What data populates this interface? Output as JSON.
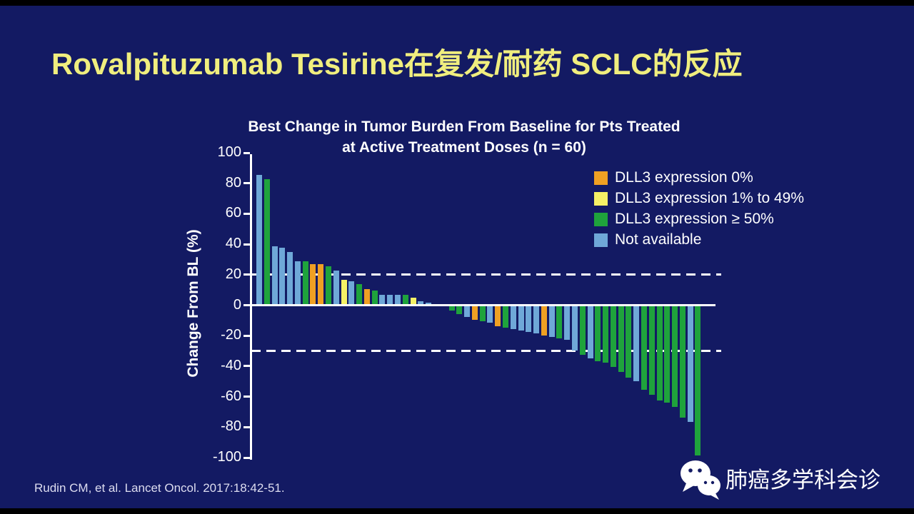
{
  "slide": {
    "title": "Rovalpituzumab Tesirine在复发/耐药 SCLC的反应",
    "citation": "Rudin CM, et al. Lancet Oncol. 2017:18:42-51.",
    "wechat_label": "肺癌多学科会诊"
  },
  "colors": {
    "background": "#131A63",
    "title_text": "#F0EE7E",
    "axis": "#FFFFFF",
    "dll3_0": "#EFA023",
    "dll3_1_49": "#F5F166",
    "dll3_ge50": "#1FA33C",
    "not_available": "#6FA8D8",
    "none": "transparent"
  },
  "chart_data": {
    "type": "bar",
    "subtype": "waterfall",
    "title_line1": "Best Change in Tumor Burden From Baseline for Pts Treated",
    "title_line2": "at Active Treatment Doses (n = 60)",
    "ylabel": "Change From BL (%)",
    "ylim": [
      -100,
      100
    ],
    "yticks": [
      100,
      80,
      60,
      40,
      20,
      0,
      -20,
      -40,
      -60,
      -80,
      -100
    ],
    "reference_lines": [
      20,
      -30
    ],
    "grid": false,
    "legend_position": "upper right",
    "legend": [
      {
        "label": "DLL3 expression 0%",
        "color_key": "dll3_0"
      },
      {
        "label": "DLL3 expression 1% to 49%",
        "color_key": "dll3_1_49"
      },
      {
        "label": "DLL3 expression ≥ 50%",
        "color_key": "dll3_ge50"
      },
      {
        "label": "Not available",
        "color_key": "not_available"
      }
    ],
    "values": [
      85,
      82,
      38,
      37,
      34,
      28,
      28,
      26,
      26,
      25,
      22,
      16,
      15,
      13,
      10,
      9,
      6,
      6,
      6,
      6,
      4,
      2,
      1,
      0,
      0,
      -3,
      -5,
      -7,
      -9,
      -10,
      -11,
      -13,
      -14,
      -15,
      -16,
      -17,
      -18,
      -19,
      -20,
      -21,
      -22,
      -29,
      -32,
      -34,
      -36,
      -37,
      -40,
      -43,
      -47,
      -49,
      -55,
      -58,
      -62,
      -63,
      -66,
      -73,
      -76,
      -98
    ],
    "groups": [
      "not_available",
      "dll3_ge50",
      "not_available",
      "not_available",
      "not_available",
      "not_available",
      "dll3_ge50",
      "dll3_0",
      "dll3_0",
      "dll3_ge50",
      "not_available",
      "dll3_1_49",
      "not_available",
      "dll3_ge50",
      "dll3_0",
      "dll3_ge50",
      "not_available",
      "not_available",
      "not_available",
      "dll3_ge50",
      "dll3_1_49",
      "not_available",
      "not_available",
      "none",
      "none",
      "dll3_ge50",
      "dll3_ge50",
      "not_available",
      "dll3_0",
      "dll3_ge50",
      "not_available",
      "dll3_0",
      "dll3_ge50",
      "not_available",
      "not_available",
      "not_available",
      "not_available",
      "dll3_0",
      "not_available",
      "dll3_ge50",
      "not_available",
      "not_available",
      "dll3_ge50",
      "not_available",
      "dll3_ge50",
      "dll3_ge50",
      "dll3_ge50",
      "dll3_ge50",
      "dll3_ge50",
      "not_available",
      "dll3_ge50",
      "dll3_ge50",
      "dll3_ge50",
      "dll3_ge50",
      "dll3_ge50",
      "dll3_ge50",
      "not_available",
      "dll3_ge50"
    ]
  }
}
